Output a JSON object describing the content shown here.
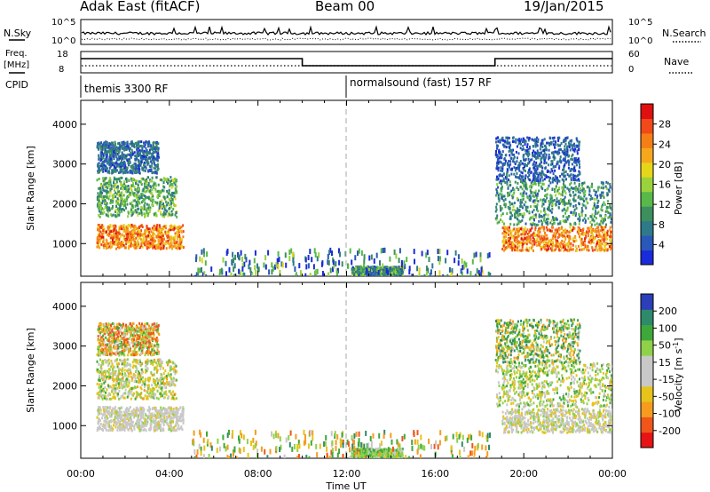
{
  "header": {
    "site_title": "Adak East (fitACF)",
    "beam": "Beam 00",
    "date": "19/Jan/2015"
  },
  "status_panel": {
    "nsky_label": "N.Sky",
    "nsearch_label": "N.Search",
    "noise_ticks_left": [
      "10^5",
      "10^0"
    ],
    "noise_ticks_right": [
      "10^5",
      "10^0"
    ],
    "freq_label_line1": "Freq.",
    "freq_label_line2": "[MHz]",
    "freq_ticks": [
      "18",
      "8"
    ],
    "nave_label": "Nave",
    "nave_ticks": [
      "60",
      "0"
    ],
    "cpid_label": "CPID",
    "cpid_segments": [
      {
        "text": "themis 3300 RF",
        "start_hour": 0,
        "end_hour": 12
      },
      {
        "text": "normalsound (fast) 157 RF",
        "start_hour": 12,
        "end_hour": 24
      }
    ],
    "frequency_steps": [
      {
        "start_hour": 0,
        "end_hour": 10,
        "value": 1
      },
      {
        "start_hour": 10,
        "end_hour": 18.7,
        "value": 0
      },
      {
        "start_hour": 18.7,
        "end_hour": 24,
        "value": 1
      }
    ]
  },
  "x_axis": {
    "label": "Time UT",
    "ticks": [
      "00:00",
      "04:00",
      "08:00",
      "12:00",
      "16:00",
      "20:00",
      "00:00"
    ],
    "range_hours": [
      0,
      24
    ],
    "marker_hour": 12
  },
  "colors": {
    "power_scale": [
      "#1a2bd9",
      "#2a58b8",
      "#2f7a8a",
      "#3d8f5e",
      "#58b84a",
      "#9ad23c",
      "#e6d619",
      "#f6a81d",
      "#f57f17",
      "#f0491a",
      "#e01010"
    ],
    "velocity_scale": [
      "#e61414",
      "#f0551c",
      "#f59c1f",
      "#e6c41a",
      "#c8c8c8",
      "#c8c8c8",
      "#8fd24a",
      "#3fa83a",
      "#2e8a6a",
      "#2a3fb8"
    ]
  },
  "chart_data": [
    {
      "type": "heatmap",
      "panel": "power",
      "ylabel": "Slant Range [km]",
      "yticks": [
        "1000",
        "2000",
        "3000",
        "4000"
      ],
      "ylim": [
        180,
        4600
      ],
      "colorbar_label": "Power [dB]",
      "colorbar_ticks": [
        "4",
        "8",
        "12",
        "16",
        "20",
        "24",
        "28"
      ],
      "colorbar_range": [
        0,
        32
      ],
      "scatter_regions": [
        {
          "t": [
            0.7,
            4.6
          ],
          "r": [
            900,
            1500
          ],
          "value": 24,
          "spread": 6
        },
        {
          "t": [
            0.7,
            4.3
          ],
          "r": [
            1700,
            2700
          ],
          "value": 12,
          "spread": 6
        },
        {
          "t": [
            0.7,
            3.5
          ],
          "r": [
            2800,
            3600
          ],
          "value": 6,
          "spread": 5
        },
        {
          "t": [
            19.0,
            24.0
          ],
          "r": [
            850,
            1450
          ],
          "value": 24,
          "spread": 6
        },
        {
          "t": [
            18.7,
            24.0
          ],
          "r": [
            1500,
            2600
          ],
          "value": 10,
          "spread": 6
        },
        {
          "t": [
            18.7,
            22.5
          ],
          "r": [
            2600,
            3700
          ],
          "value": 5,
          "spread": 4
        },
        {
          "t": [
            12.2,
            14.5
          ],
          "r": [
            200,
            450
          ],
          "value": 10,
          "spread": 8
        },
        {
          "t": [
            5.0,
            18.5
          ],
          "r": [
            200,
            900
          ],
          "value": 8,
          "spread": 10
        }
      ]
    },
    {
      "type": "heatmap",
      "panel": "velocity",
      "ylabel": "Slant Range [km]",
      "yticks": [
        "1000",
        "2000",
        "3000",
        "4000"
      ],
      "ylim": [
        180,
        4600
      ],
      "colorbar_label": "Velocity [m s^-1]",
      "colorbar_ticks": [
        "-200",
        "-100",
        "-50",
        "-15",
        "15",
        "50",
        "100",
        "200"
      ],
      "colorbar_range": [
        -250,
        250
      ],
      "scatter_regions": [
        {
          "t": [
            0.7,
            4.6
          ],
          "r": [
            900,
            1500
          ],
          "value": 0,
          "spread": 20
        },
        {
          "t": [
            0.7,
            4.3
          ],
          "r": [
            1700,
            2700
          ],
          "value": 0,
          "spread": 60
        },
        {
          "t": [
            0.7,
            3.5
          ],
          "r": [
            2800,
            3600
          ],
          "value": -40,
          "spread": 120
        },
        {
          "t": [
            19.0,
            24.0
          ],
          "r": [
            850,
            1450
          ],
          "value": 0,
          "spread": 25
        },
        {
          "t": [
            18.7,
            24.0
          ],
          "r": [
            1500,
            2600
          ],
          "value": 10,
          "spread": 60
        },
        {
          "t": [
            18.7,
            22.5
          ],
          "r": [
            2600,
            3700
          ],
          "value": 30,
          "spread": 120
        },
        {
          "t": [
            12.2,
            14.5
          ],
          "r": [
            200,
            450
          ],
          "value": 40,
          "spread": 40
        },
        {
          "t": [
            5.0,
            18.5
          ],
          "r": [
            200,
            900
          ],
          "value": 0,
          "spread": 120
        }
      ]
    }
  ]
}
